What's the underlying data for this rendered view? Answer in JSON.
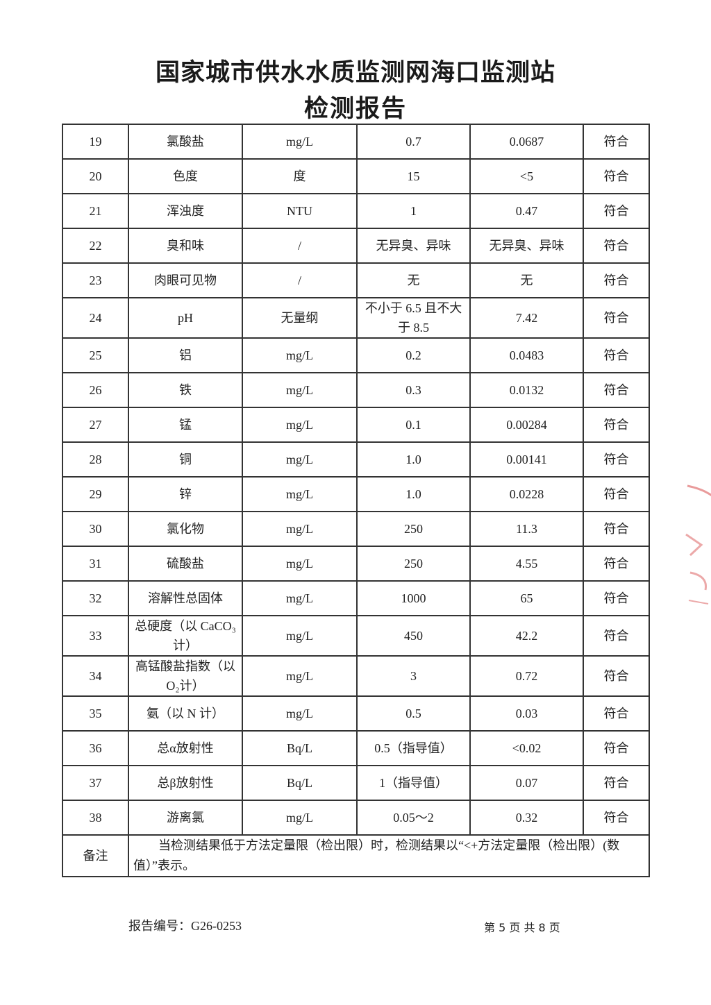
{
  "header": {
    "title": "国家城市供水水质监测网海口监测站",
    "subtitle": "检测报告"
  },
  "rows": [
    {
      "no": "19",
      "item": "氯酸盐",
      "unit": "mg/L",
      "limit": "0.7",
      "result": "0.0687",
      "verdict": "符合"
    },
    {
      "no": "20",
      "item": "色度",
      "unit": "度",
      "limit": "15",
      "result": "<5",
      "verdict": "符合"
    },
    {
      "no": "21",
      "item": "浑浊度",
      "unit": "NTU",
      "limit": "1",
      "result": "0.47",
      "verdict": "符合"
    },
    {
      "no": "22",
      "item": "臭和味",
      "unit": "/",
      "limit": "无异臭、异味",
      "result": "无异臭、异味",
      "verdict": "符合"
    },
    {
      "no": "23",
      "item": "肉眼可见物",
      "unit": "/",
      "limit": "无",
      "result": "无",
      "verdict": "符合"
    },
    {
      "no": "24",
      "item": "pH",
      "unit": "无量纲",
      "limit": "不小于 6.5 且不大于 8.5",
      "result": "7.42",
      "verdict": "符合"
    },
    {
      "no": "25",
      "item": "铝",
      "unit": "mg/L",
      "limit": "0.2",
      "result": "0.0483",
      "verdict": "符合"
    },
    {
      "no": "26",
      "item": "铁",
      "unit": "mg/L",
      "limit": "0.3",
      "result": "0.0132",
      "verdict": "符合"
    },
    {
      "no": "27",
      "item": "锰",
      "unit": "mg/L",
      "limit": "0.1",
      "result": "0.00284",
      "verdict": "符合"
    },
    {
      "no": "28",
      "item": "铜",
      "unit": "mg/L",
      "limit": "1.0",
      "result": "0.00141",
      "verdict": "符合"
    },
    {
      "no": "29",
      "item": "锌",
      "unit": "mg/L",
      "limit": "1.0",
      "result": "0.0228",
      "verdict": "符合"
    },
    {
      "no": "30",
      "item": "氯化物",
      "unit": "mg/L",
      "limit": "250",
      "result": "11.3",
      "verdict": "符合"
    },
    {
      "no": "31",
      "item": "硫酸盐",
      "unit": "mg/L",
      "limit": "250",
      "result": "4.55",
      "verdict": "符合"
    },
    {
      "no": "32",
      "item": "溶解性总固体",
      "unit": "mg/L",
      "limit": "1000",
      "result": "65",
      "verdict": "符合"
    },
    {
      "no": "33",
      "item": "总硬度（以 CaCO₃计）",
      "unit": "mg/L",
      "limit": "450",
      "result": "42.2",
      "verdict": "符合"
    },
    {
      "no": "34",
      "item": "高锰酸盐指数（以 O₂计）",
      "unit": "mg/L",
      "limit": "3",
      "result": "0.72",
      "verdict": "符合"
    },
    {
      "no": "35",
      "item": "氨（以 N 计）",
      "unit": "mg/L",
      "limit": "0.5",
      "result": "0.03",
      "verdict": "符合"
    },
    {
      "no": "36",
      "item": "总α放射性",
      "unit": "Bq/L",
      "limit": "0.5（指导值）",
      "result": "<0.02",
      "verdict": "符合"
    },
    {
      "no": "37",
      "item": "总β放射性",
      "unit": "Bq/L",
      "limit": "1（指导值）",
      "result": "0.07",
      "verdict": "符合"
    },
    {
      "no": "38",
      "item": "游离氯",
      "unit": "mg/L",
      "limit": "0.05～2",
      "result": "0.32",
      "verdict": "符合"
    }
  ],
  "note": {
    "label": "备注",
    "text": "当检测结果低于方法定量限（检出限）时，检测结果以“<+方法定量限（检出限）(数值）”表示。"
  },
  "footer": {
    "report_no": "报告编号：G26-0253",
    "page": "第 5 页  共 8 页"
  },
  "stamp": {
    "color": "#d9534f"
  }
}
